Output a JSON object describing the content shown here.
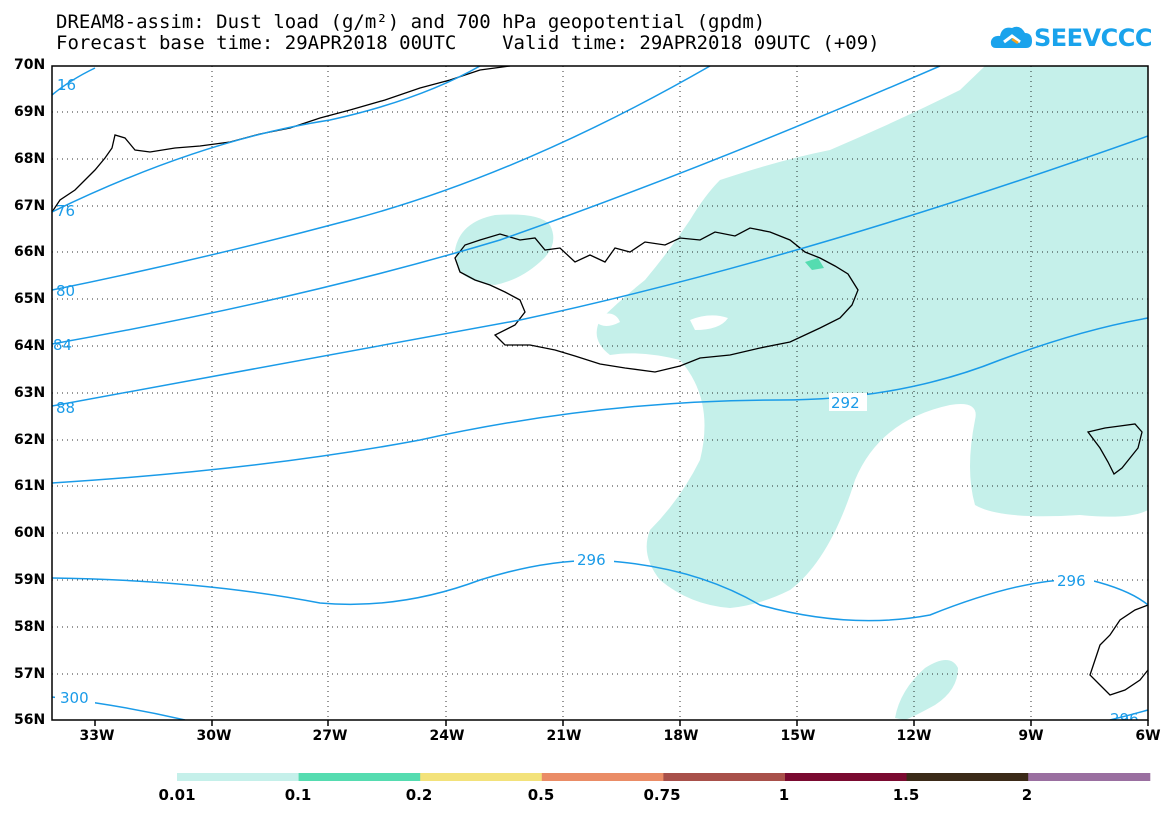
{
  "title_line1": "DREAM8-assim: Dust load (g/m²) and 700 hPa geopotential (gpdm)",
  "title_line2": "Forecast base time: 29APR2018 00UTC    Valid time: 29APR2018 09UTC (+09)",
  "logo_text": "SEEVCCC",
  "logo_icon": "cloud-icon",
  "map": {
    "lat_labels": [
      "70N",
      "69N",
      "68N",
      "67N",
      "66N",
      "65N",
      "64N",
      "63N",
      "62N",
      "61N",
      "60N",
      "59N",
      "58N",
      "57N",
      "56N"
    ],
    "lon_labels": [
      "33W",
      "30W",
      "27W",
      "24W",
      "21W",
      "18W",
      "15W",
      "12W",
      "9W",
      "6W"
    ],
    "contour_labels": {
      "c292": "292",
      "c296a": "296",
      "c296b": "296",
      "c300": "300",
      "e276": "76",
      "e280": "80",
      "e284": "84",
      "e288": "88",
      "e16": "16",
      "e296c": "296"
    },
    "colors": {
      "contour": "#1a9be8",
      "dust_light": "#c5f0ea",
      "dust_mid": "#55dcb0",
      "coast": "#000000"
    }
  },
  "colorbar": {
    "labels": [
      "0.01",
      "0.1",
      "0.2",
      "0.5",
      "0.75",
      "1",
      "1.5",
      "2"
    ],
    "colors": [
      "#c5f0ea",
      "#55dcb0",
      "#f3e27a",
      "#ea8c66",
      "#a8504a",
      "#7a0a30",
      "#3b2a18",
      "#9a6fa0"
    ]
  }
}
